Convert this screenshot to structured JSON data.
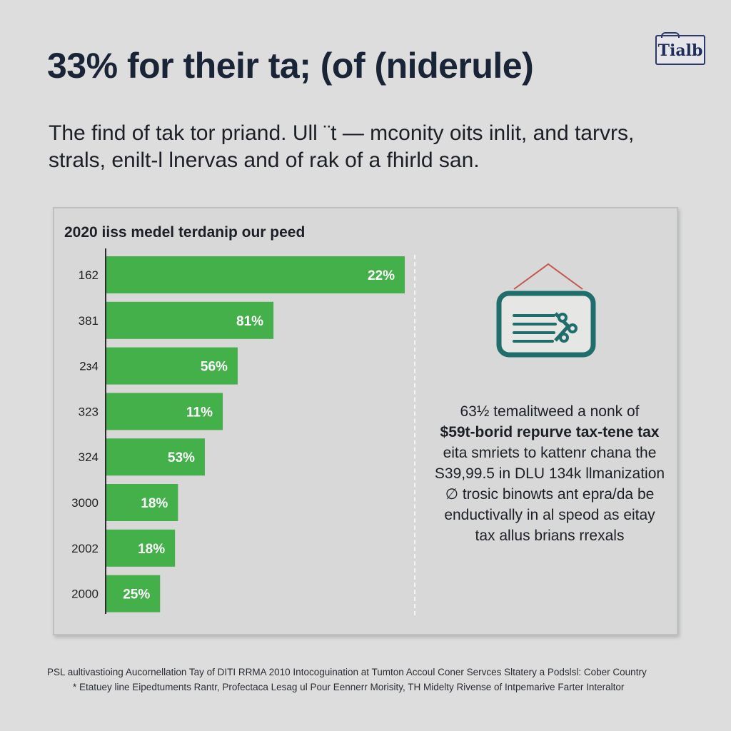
{
  "title": "33% for their ta; (of (niderule)",
  "logo": "Tialb",
  "subtitle": "The find of tak tor priand. Ull ¨t — mconity oits inlit, and tarvrs, strals, enilt-l lnervas and of rak of a fhirld san.",
  "chart_data": {
    "type": "bar",
    "orientation": "horizontal",
    "title": "2020 iiss medel terdanip our peed",
    "categories": [
      "162",
      "381",
      "2з4",
      "323",
      "324",
      "3000",
      "2002",
      "2000"
    ],
    "values": [
      100,
      56,
      44,
      39,
      33,
      24,
      23,
      18
    ],
    "data_labels": [
      "22%",
      "81%",
      "56%",
      "11%",
      "53%",
      "18%",
      "18%",
      "25%"
    ],
    "xlim": [
      0,
      100
    ],
    "bar_color": "#43b04a",
    "label_color": "#ffffff"
  },
  "callout": {
    "icon": "document-tag-icon",
    "lines": [
      "63½ temalitweed a nonk of",
      "$59t-borid repurve tax-tene tax",
      "eita smriets to kattenr chana the",
      "S39,99.5 in DLU 134k llmanization",
      "∅ trosic binowts ant epra/da be",
      "enductivally in al speod as eitay",
      "tax allus brians rrexals"
    ]
  },
  "footer": {
    "line1": "PSL aultivastioing Aucornellation Tay of DITI RRMA 2010 Intocoguination at Tumton Accoul Coner Servces Sltatery a Podslsl: Cober Country",
    "line2": "*  Etatuey line Eipedtuments Rantr, Profectaca Lesag ul Pour Eennerr Morisity, TH Midelty Rivense of Intpemarive Farter Interaltor"
  },
  "colors": {
    "background": "#dcdddc",
    "panel": "#d7d8d7",
    "accent_teal": "#1f6e6c",
    "accent_red": "#c2584f"
  }
}
